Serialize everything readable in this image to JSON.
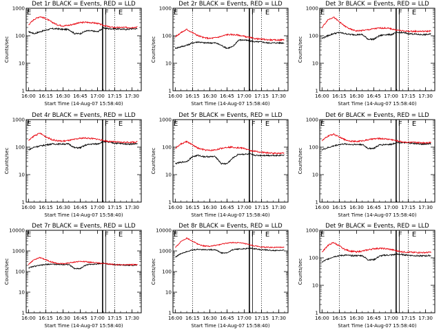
{
  "figure": {
    "background": "#ffffff"
  },
  "colors": {
    "events": "#000000",
    "lld": "#e8000b",
    "axes": "#000000"
  },
  "x_axis": {
    "title": "Start Time (14-Aug-07 15:58:40)",
    "tick_labels": [
      "16:00",
      "16:15",
      "16:30",
      "16:45",
      "17:00",
      "17:15",
      "17:30"
    ],
    "range_minutes_after_start": [
      -0.67,
      99.33
    ],
    "dotted_lines_at": [
      "16:15",
      "17:15"
    ],
    "solid_lines_at": [
      "17:05",
      "17:06"
    ]
  },
  "y_axis": {
    "label": "Counts/sec",
    "scale": "log"
  },
  "chart_data": [
    {
      "type": "line",
      "title": "Det 1r BLACK = Events, RED = LLD",
      "ylim": [
        1,
        1000
      ],
      "y_tick_labels": [
        "1",
        "10",
        "100",
        "1000"
      ],
      "markers": [
        "F",
        "E",
        "E"
      ],
      "series": [
        {
          "name": "Events",
          "color": "#000000",
          "x": [
            "16:00",
            "16:05",
            "16:10",
            "16:15",
            "16:20",
            "16:25",
            "16:30",
            "16:35",
            "16:40",
            "16:45",
            "16:50",
            "16:55",
            "17:00",
            "17:05",
            "17:10",
            "17:15",
            "17:20",
            "17:25",
            "17:30",
            "17:35"
          ],
          "values": [
            140,
            120,
            140,
            160,
            180,
            180,
            170,
            170,
            120,
            120,
            150,
            150,
            140,
            190,
            180,
            180,
            175,
            170,
            180,
            180
          ]
        },
        {
          "name": "LLD",
          "color": "#e8000b",
          "x": [
            "16:00",
            "16:05",
            "16:10",
            "16:15",
            "16:20",
            "16:25",
            "16:30",
            "16:35",
            "16:40",
            "16:45",
            "16:50",
            "16:55",
            "17:00",
            "17:05",
            "17:10",
            "17:15",
            "17:20",
            "17:25",
            "17:30",
            "17:35"
          ],
          "values": [
            250,
            400,
            500,
            420,
            320,
            250,
            230,
            240,
            270,
            300,
            310,
            300,
            280,
            240,
            210,
            200,
            200,
            200,
            200,
            210
          ]
        }
      ]
    },
    {
      "type": "line",
      "title": "Det 2r BLACK = Events, RED = LLD",
      "ylim": [
        1,
        1000
      ],
      "y_tick_labels": [
        "1",
        "10",
        "100",
        "1000"
      ],
      "markers": [
        "F",
        "E",
        "E"
      ],
      "series": [
        {
          "name": "Events",
          "color": "#000000",
          "x": [
            "16:00",
            "16:05",
            "16:10",
            "16:15",
            "16:20",
            "16:25",
            "16:30",
            "16:35",
            "16:40",
            "16:45",
            "16:50",
            "16:55",
            "17:00",
            "17:05",
            "17:10",
            "17:15",
            "17:20",
            "17:25",
            "17:30",
            "17:35"
          ],
          "values": [
            35,
            40,
            45,
            55,
            60,
            55,
            55,
            55,
            45,
            35,
            40,
            70,
            70,
            65,
            60,
            60,
            55,
            55,
            55,
            55
          ]
        },
        {
          "name": "LLD",
          "color": "#e8000b",
          "x": [
            "16:00",
            "16:05",
            "16:10",
            "16:15",
            "16:20",
            "16:25",
            "16:30",
            "16:35",
            "16:40",
            "16:45",
            "16:50",
            "16:55",
            "17:00",
            "17:05",
            "17:10",
            "17:15",
            "17:20",
            "17:25",
            "17:30",
            "17:35"
          ],
          "values": [
            90,
            130,
            170,
            130,
            100,
            85,
            80,
            85,
            95,
            110,
            110,
            105,
            95,
            85,
            78,
            75,
            72,
            70,
            70,
            72
          ]
        }
      ]
    },
    {
      "type": "line",
      "title": "Det 3r BLACK = Events, RED = LLD",
      "ylim": [
        1,
        1000
      ],
      "y_tick_labels": [
        "1",
        "10",
        "100",
        "1000"
      ],
      "markers": [
        "F",
        "E",
        "E"
      ],
      "series": [
        {
          "name": "Events",
          "color": "#000000",
          "x": [
            "16:00",
            "16:05",
            "16:10",
            "16:15",
            "16:20",
            "16:25",
            "16:30",
            "16:35",
            "16:40",
            "16:45",
            "16:50",
            "16:55",
            "17:00",
            "17:05",
            "17:10",
            "17:15",
            "17:20",
            "17:25",
            "17:30",
            "17:35"
          ],
          "values": [
            80,
            100,
            120,
            130,
            120,
            110,
            110,
            110,
            75,
            75,
            100,
            110,
            110,
            130,
            130,
            120,
            115,
            110,
            110,
            115
          ]
        },
        {
          "name": "LLD",
          "color": "#e8000b",
          "x": [
            "16:00",
            "16:05",
            "16:10",
            "16:15",
            "16:20",
            "16:25",
            "16:30",
            "16:35",
            "16:40",
            "16:45",
            "16:50",
            "16:55",
            "17:00",
            "17:05",
            "17:10",
            "17:15",
            "17:20",
            "17:25",
            "17:30",
            "17:35"
          ],
          "values": [
            200,
            380,
            480,
            320,
            220,
            170,
            150,
            155,
            165,
            180,
            190,
            190,
            180,
            160,
            150,
            145,
            145,
            145,
            145,
            150
          ]
        }
      ]
    },
    {
      "type": "line",
      "title": "Det 4r BLACK = Events, RED = LLD",
      "ylim": [
        1,
        1000
      ],
      "y_tick_labels": [
        "1",
        "10",
        "100",
        "1000"
      ],
      "markers": [
        "F",
        "E",
        "E"
      ],
      "series": [
        {
          "name": "Events",
          "color": "#000000",
          "x": [
            "16:00",
            "16:05",
            "16:10",
            "16:15",
            "16:20",
            "16:25",
            "16:30",
            "16:35",
            "16:40",
            "16:45",
            "16:50",
            "16:55",
            "17:00",
            "17:05",
            "17:10",
            "17:15",
            "17:20",
            "17:25",
            "17:30",
            "17:35"
          ],
          "values": [
            80,
            100,
            110,
            120,
            130,
            130,
            130,
            130,
            95,
            95,
            120,
            130,
            130,
            160,
            150,
            140,
            135,
            130,
            130,
            135
          ]
        },
        {
          "name": "LLD",
          "color": "#e8000b",
          "x": [
            "16:00",
            "16:05",
            "16:10",
            "16:15",
            "16:20",
            "16:25",
            "16:30",
            "16:35",
            "16:40",
            "16:45",
            "16:50",
            "16:55",
            "17:00",
            "17:05",
            "17:10",
            "17:15",
            "17:20",
            "17:25",
            "17:30",
            "17:35"
          ],
          "values": [
            170,
            260,
            320,
            240,
            190,
            170,
            165,
            175,
            190,
            210,
            215,
            205,
            195,
            175,
            160,
            155,
            150,
            150,
            150,
            155
          ]
        }
      ]
    },
    {
      "type": "line",
      "title": "Det 5r BLACK = Events, RED = LLD",
      "ylim": [
        1,
        1000
      ],
      "y_tick_labels": [
        "1",
        "10",
        "100",
        "1000"
      ],
      "markers": [
        "F",
        "E",
        "E"
      ],
      "series": [
        {
          "name": "Events",
          "color": "#000000",
          "x": [
            "16:00",
            "16:05",
            "16:10",
            "16:15",
            "16:20",
            "16:25",
            "16:30",
            "16:35",
            "16:40",
            "16:45",
            "16:50",
            "16:55",
            "17:00",
            "17:05",
            "17:10",
            "17:15",
            "17:20",
            "17:25",
            "17:30",
            "17:35"
          ],
          "values": [
            25,
            28,
            30,
            45,
            50,
            45,
            45,
            45,
            25,
            25,
            40,
            55,
            55,
            55,
            50,
            50,
            50,
            50,
            50,
            52
          ]
        },
        {
          "name": "LLD",
          "color": "#e8000b",
          "x": [
            "16:00",
            "16:05",
            "16:10",
            "16:15",
            "16:20",
            "16:25",
            "16:30",
            "16:35",
            "16:40",
            "16:45",
            "16:50",
            "16:55",
            "17:00",
            "17:05",
            "17:10",
            "17:15",
            "17:20",
            "17:25",
            "17:30",
            "17:35"
          ],
          "values": [
            90,
            130,
            160,
            120,
            90,
            80,
            75,
            80,
            90,
            100,
            100,
            95,
            90,
            75,
            70,
            65,
            62,
            60,
            60,
            62
          ]
        }
      ]
    },
    {
      "type": "line",
      "title": "Det 6r BLACK = Events, RED = LLD",
      "ylim": [
        1,
        1000
      ],
      "y_tick_labels": [
        "1",
        "10",
        "100",
        "1000"
      ],
      "markers": [
        "F",
        "E",
        "E"
      ],
      "series": [
        {
          "name": "Events",
          "color": "#000000",
          "x": [
            "16:00",
            "16:05",
            "16:10",
            "16:15",
            "16:20",
            "16:25",
            "16:30",
            "16:35",
            "16:40",
            "16:45",
            "16:50",
            "16:55",
            "17:00",
            "17:05",
            "17:10",
            "17:15",
            "17:20",
            "17:25",
            "17:30",
            "17:35"
          ],
          "values": [
            80,
            95,
            110,
            125,
            130,
            125,
            125,
            125,
            90,
            90,
            120,
            125,
            125,
            150,
            145,
            140,
            135,
            130,
            130,
            135
          ]
        },
        {
          "name": "LLD",
          "color": "#e8000b",
          "x": [
            "16:00",
            "16:05",
            "16:10",
            "16:15",
            "16:20",
            "16:25",
            "16:30",
            "16:35",
            "16:40",
            "16:45",
            "16:50",
            "16:55",
            "17:00",
            "17:05",
            "17:10",
            "17:15",
            "17:20",
            "17:25",
            "17:30",
            "17:35"
          ],
          "values": [
            170,
            250,
            300,
            230,
            185,
            165,
            160,
            170,
            185,
            200,
            205,
            200,
            190,
            170,
            155,
            150,
            148,
            145,
            145,
            150
          ]
        }
      ]
    },
    {
      "type": "line",
      "title": "Det 7r BLACK = Events, RED = LLD",
      "ylim": [
        1,
        10000
      ],
      "y_tick_labels": [
        "1",
        "10",
        "100",
        "1000",
        "10000"
      ],
      "markers": [
        "F",
        "E",
        "E"
      ],
      "series": [
        {
          "name": "Events",
          "color": "#000000",
          "x": [
            "16:00",
            "16:05",
            "16:10",
            "16:15",
            "16:20",
            "16:25",
            "16:30",
            "16:35",
            "16:40",
            "16:45",
            "16:50",
            "16:55",
            "17:00",
            "17:05",
            "17:10",
            "17:15",
            "17:20",
            "17:25",
            "17:30",
            "17:35"
          ],
          "values": [
            150,
            180,
            200,
            220,
            230,
            220,
            220,
            220,
            140,
            140,
            210,
            230,
            230,
            260,
            230,
            215,
            205,
            200,
            200,
            205
          ]
        },
        {
          "name": "LLD",
          "color": "#e8000b",
          "x": [
            "16:00",
            "16:05",
            "16:10",
            "16:15",
            "16:20",
            "16:25",
            "16:30",
            "16:35",
            "16:40",
            "16:45",
            "16:50",
            "16:55",
            "17:00",
            "17:05",
            "17:10",
            "17:15",
            "17:20",
            "17:25",
            "17:30",
            "17:35"
          ],
          "values": [
            220,
            380,
            480,
            380,
            290,
            250,
            240,
            260,
            290,
            310,
            300,
            280,
            265,
            245,
            230,
            220,
            215,
            215,
            215,
            220
          ]
        }
      ]
    },
    {
      "type": "line",
      "title": "Det 8r BLACK = Events, RED = LLD",
      "ylim": [
        1,
        10000
      ],
      "y_tick_labels": [
        "1",
        "10",
        "100",
        "1000",
        "10000"
      ],
      "markers": [
        "F",
        "E",
        "E"
      ],
      "series": [
        {
          "name": "Events",
          "color": "#000000",
          "x": [
            "16:00",
            "16:05",
            "16:10",
            "16:15",
            "16:20",
            "16:25",
            "16:30",
            "16:35",
            "16:40",
            "16:45",
            "16:50",
            "16:55",
            "17:00",
            "17:05",
            "17:10",
            "17:15",
            "17:20",
            "17:25",
            "17:30",
            "17:35"
          ],
          "values": [
            500,
            750,
            950,
            1100,
            1200,
            1150,
            1150,
            1150,
            800,
            800,
            1150,
            1250,
            1250,
            1350,
            1250,
            1150,
            1100,
            1050,
            1050,
            1100
          ]
        },
        {
          "name": "LLD",
          "color": "#e8000b",
          "x": [
            "16:00",
            "16:05",
            "16:10",
            "16:15",
            "16:20",
            "16:25",
            "16:30",
            "16:35",
            "16:40",
            "16:45",
            "16:50",
            "16:55",
            "17:00",
            "17:05",
            "17:10",
            "17:15",
            "17:20",
            "17:25",
            "17:30",
            "17:35"
          ],
          "values": [
            1400,
            2900,
            4200,
            3000,
            2100,
            1750,
            1700,
            1850,
            2100,
            2400,
            2550,
            2500,
            2300,
            1950,
            1700,
            1550,
            1500,
            1480,
            1480,
            1550
          ]
        }
      ]
    },
    {
      "type": "line",
      "title": "Det 9r BLACK = Events, RED = LLD",
      "ylim": [
        1,
        1000
      ],
      "y_tick_labels": [
        "1",
        "10",
        "100",
        "1000"
      ],
      "markers": [
        "F",
        "E",
        "E"
      ],
      "series": [
        {
          "name": "Events",
          "color": "#000000",
          "x": [
            "16:00",
            "16:05",
            "16:10",
            "16:15",
            "16:20",
            "16:25",
            "16:30",
            "16:35",
            "16:40",
            "16:45",
            "16:50",
            "16:55",
            "17:00",
            "17:05",
            "17:10",
            "17:15",
            "17:20",
            "17:25",
            "17:30",
            "17:35"
          ],
          "values": [
            70,
            90,
            110,
            120,
            125,
            120,
            120,
            120,
            85,
            85,
            115,
            125,
            125,
            135,
            130,
            125,
            120,
            118,
            118,
            122
          ]
        },
        {
          "name": "LLD",
          "color": "#e8000b",
          "x": [
            "16:00",
            "16:05",
            "16:10",
            "16:15",
            "16:20",
            "16:25",
            "16:30",
            "16:35",
            "16:40",
            "16:45",
            "16:50",
            "16:55",
            "17:00",
            "17:05",
            "17:10",
            "17:15",
            "17:20",
            "17:25",
            "17:30",
            "17:35"
          ],
          "values": [
            160,
            280,
            360,
            270,
            200,
            175,
            165,
            175,
            195,
            215,
            220,
            215,
            200,
            180,
            165,
            160,
            158,
            155,
            155,
            160
          ]
        }
      ]
    }
  ]
}
